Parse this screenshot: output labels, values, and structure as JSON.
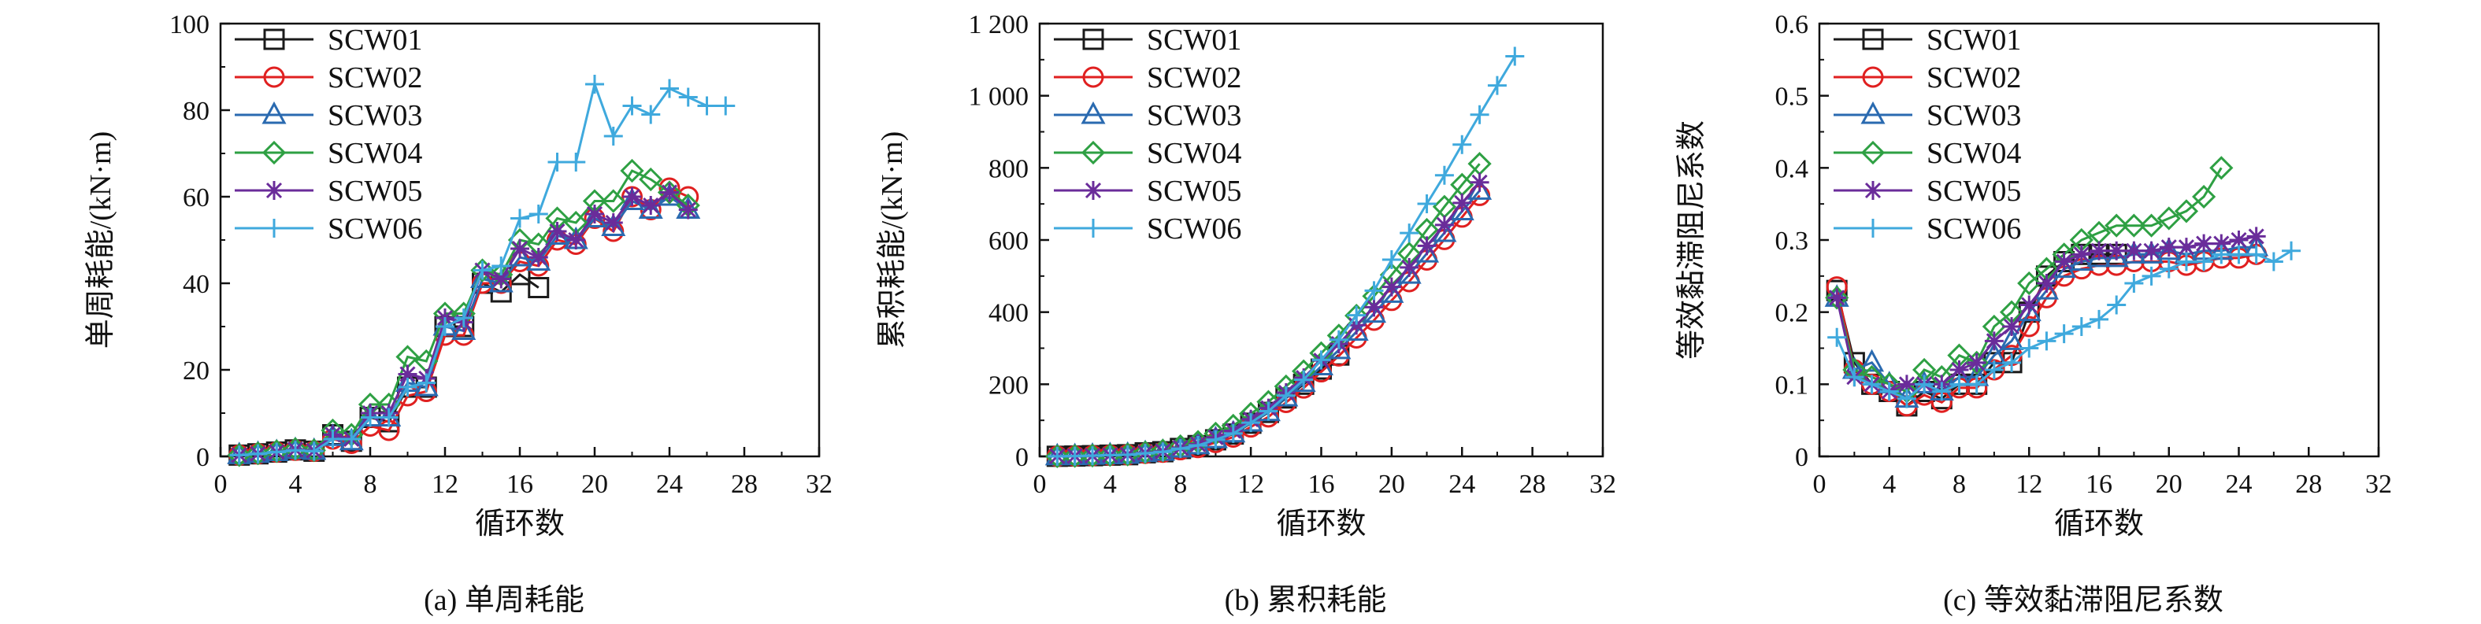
{
  "chart_data": [
    {
      "type": "line",
      "caption": "(a) 单周耗能",
      "xlabel": "循环数",
      "ylabel": "单周耗能/(kN·m)",
      "xlim": [
        0,
        32
      ],
      "ylim": [
        0,
        100
      ],
      "xticks": [
        "0",
        "4",
        "8",
        "12",
        "16",
        "20",
        "24",
        "28",
        "32"
      ],
      "yticks": [
        "0",
        "20",
        "40",
        "60",
        "80",
        "100"
      ],
      "legend": "top-left",
      "series": [
        {
          "name": "SCW01",
          "color": "#1a1a1a",
          "marker": "square",
          "x": [
            1,
            2,
            3,
            4,
            5,
            6,
            7,
            8,
            9,
            10,
            11,
            12,
            13,
            14,
            15,
            16,
            17
          ],
          "y": [
            0.3,
            0.6,
            1,
            1.5,
            1.2,
            5,
            3.5,
            9,
            8,
            16,
            16,
            30,
            30,
            40,
            38,
            42,
            39
          ]
        },
        {
          "name": "SCW02",
          "color": "#e02020",
          "marker": "circle",
          "x": [
            1,
            2,
            3,
            4,
            5,
            6,
            7,
            8,
            9,
            10,
            11,
            12,
            13,
            14,
            15,
            16,
            17,
            18,
            19,
            20,
            21,
            22,
            23,
            24,
            25
          ],
          "y": [
            0.3,
            0.6,
            1,
            1.4,
            1.2,
            4,
            3,
            7,
            6,
            14,
            15,
            28,
            28,
            40,
            40,
            45,
            44,
            50,
            49,
            55,
            52,
            60,
            57,
            62,
            60
          ]
        },
        {
          "name": "SCW03",
          "color": "#2a6ab0",
          "marker": "triangle",
          "x": [
            1,
            2,
            3,
            4,
            5,
            6,
            7,
            8,
            9,
            10,
            11,
            12,
            13,
            14,
            15,
            16,
            17,
            18,
            19,
            20,
            21,
            22,
            23,
            24,
            25
          ],
          "y": [
            0.3,
            0.6,
            1,
            1.5,
            1.3,
            4.5,
            3.5,
            9,
            9,
            17,
            16,
            30,
            29,
            41,
            40,
            46,
            45,
            51,
            50,
            55,
            53,
            59,
            57,
            60,
            57
          ]
        },
        {
          "name": "SCW04",
          "color": "#2ea043",
          "marker": "diamond",
          "x": [
            1,
            2,
            3,
            4,
            5,
            6,
            7,
            8,
            9,
            10,
            11,
            12,
            13,
            14,
            15,
            16,
            17,
            18,
            19,
            20,
            21,
            22,
            23,
            24,
            25
          ],
          "y": [
            0.3,
            0.7,
            1.2,
            1.7,
            1.4,
            6,
            5,
            12,
            12,
            23,
            22,
            33,
            33,
            43,
            42,
            50,
            49,
            55,
            54,
            59,
            59,
            66,
            64,
            61,
            58
          ]
        },
        {
          "name": "SCW05",
          "color": "#6a2c9a",
          "marker": "asterisk",
          "x": [
            1,
            2,
            3,
            4,
            5,
            6,
            7,
            8,
            9,
            10,
            11,
            12,
            13,
            14,
            15,
            16,
            17,
            18,
            19,
            20,
            21,
            22,
            23,
            24,
            25
          ],
          "y": [
            0.3,
            0.6,
            1,
            1.6,
            1.3,
            5,
            4,
            10,
            10,
            19,
            18,
            32,
            31,
            43,
            41,
            48,
            46,
            52,
            50,
            56,
            54,
            60,
            58,
            61,
            57
          ]
        },
        {
          "name": "SCW06",
          "color": "#3fa9dd",
          "marker": "plus",
          "x": [
            1,
            2,
            3,
            4,
            5,
            6,
            7,
            8,
            9,
            10,
            11,
            12,
            13,
            14,
            15,
            16,
            17,
            18,
            19,
            20,
            21,
            22,
            23,
            24,
            25,
            26,
            27
          ],
          "y": [
            0.3,
            0.6,
            1,
            1.4,
            1.2,
            4,
            4,
            9,
            9,
            16,
            17,
            30,
            32,
            43,
            44,
            55,
            56,
            68,
            68,
            86,
            74,
            81,
            79,
            85,
            83,
            81,
            81
          ]
        }
      ]
    },
    {
      "type": "line",
      "caption": "(b) 累积耗能",
      "xlabel": "循环数",
      "ylabel": "累积耗能/(kN·m)",
      "xlim": [
        0,
        32
      ],
      "ylim": [
        0,
        1200
      ],
      "xticks": [
        "0",
        "4",
        "8",
        "12",
        "16",
        "20",
        "24",
        "28",
        "32"
      ],
      "yticks": [
        "0",
        "200",
        "400",
        "600",
        "800",
        "1 000",
        "1 200"
      ],
      "legend": "top-left",
      "series": [
        {
          "name": "SCW01",
          "color": "#1a1a1a",
          "marker": "square",
          "x": [
            1,
            2,
            3,
            4,
            5,
            6,
            7,
            8,
            9,
            10,
            11,
            12,
            13,
            14,
            15,
            16,
            17
          ],
          "y": [
            0.3,
            1,
            2,
            3.5,
            4.7,
            10,
            13,
            22,
            30,
            46,
            62,
            92,
            122,
            162,
            200,
            242,
            281
          ]
        },
        {
          "name": "SCW02",
          "color": "#e02020",
          "marker": "circle",
          "x": [
            1,
            2,
            3,
            4,
            5,
            6,
            7,
            8,
            9,
            10,
            11,
            12,
            13,
            14,
            15,
            16,
            17,
            18,
            19,
            20,
            21,
            22,
            23,
            24,
            25
          ],
          "y": [
            0.3,
            0.9,
            1.9,
            3.3,
            4.5,
            8.5,
            11.5,
            18.5,
            24.5,
            38.5,
            53.5,
            81.5,
            109.5,
            149.5,
            189.5,
            234.5,
            278.5,
            328.5,
            377.5,
            432.5,
            484.5,
            544.5,
            601.5,
            663.5,
            723.5
          ]
        },
        {
          "name": "SCW03",
          "color": "#2a6ab0",
          "marker": "triangle",
          "x": [
            1,
            2,
            3,
            4,
            5,
            6,
            7,
            8,
            9,
            10,
            11,
            12,
            13,
            14,
            15,
            16,
            17,
            18,
            19,
            20,
            21,
            22,
            23,
            24,
            25
          ],
          "y": [
            0.3,
            0.9,
            1.9,
            3.4,
            4.7,
            9.2,
            12.7,
            21.7,
            30.7,
            47.7,
            63.7,
            93.7,
            122.7,
            163.7,
            203.7,
            249.7,
            294.7,
            345.7,
            395.7,
            450.7,
            503.7,
            562.7,
            619.7,
            679.7,
            736.7
          ]
        },
        {
          "name": "SCW04",
          "color": "#2ea043",
          "marker": "diamond",
          "x": [
            1,
            2,
            3,
            4,
            5,
            6,
            7,
            8,
            9,
            10,
            11,
            12,
            13,
            14,
            15,
            16,
            17,
            18,
            19,
            20,
            21,
            22,
            23,
            24,
            25
          ],
          "y": [
            0.3,
            1,
            2.2,
            3.9,
            5.3,
            11.3,
            16.3,
            28.3,
            40.3,
            63.3,
            85.3,
            118.3,
            151.3,
            194.3,
            236.3,
            286.3,
            335.3,
            390.3,
            444.3,
            503.3,
            562.3,
            628.3,
            692.3,
            753.3,
            811.3
          ]
        },
        {
          "name": "SCW05",
          "color": "#6a2c9a",
          "marker": "asterisk",
          "x": [
            1,
            2,
            3,
            4,
            5,
            6,
            7,
            8,
            9,
            10,
            11,
            12,
            13,
            14,
            15,
            16,
            17,
            18,
            19,
            20,
            21,
            22,
            23,
            24,
            25
          ],
          "y": [
            0.3,
            0.9,
            1.9,
            3.5,
            4.8,
            9.8,
            13.8,
            23.8,
            33.8,
            52.8,
            70.8,
            102.8,
            133.8,
            176.8,
            217.8,
            265.8,
            311.8,
            363.8,
            413.8,
            469.8,
            523.8,
            583.8,
            641.8,
            702.8,
            759.8
          ]
        },
        {
          "name": "SCW06",
          "color": "#3fa9dd",
          "marker": "plus",
          "x": [
            1,
            2,
            3,
            4,
            5,
            6,
            7,
            8,
            9,
            10,
            11,
            12,
            13,
            14,
            15,
            16,
            17,
            18,
            19,
            20,
            21,
            22,
            23,
            24,
            25,
            26,
            27
          ],
          "y": [
            0.3,
            0.9,
            1.9,
            3.3,
            4.5,
            8.5,
            12.5,
            21.5,
            30.5,
            46.5,
            63.5,
            93.5,
            125.5,
            168.5,
            212.5,
            267.5,
            323.5,
            391.5,
            459.5,
            545.5,
            619.5,
            700.5,
            779.5,
            864.5,
            947.5,
            1028.5,
            1109.5
          ]
        }
      ]
    },
    {
      "type": "line",
      "caption": "(c) 等效黏滞阻尼系数",
      "xlabel": "循环数",
      "ylabel": "等效黏滞阻尼系数",
      "xlim": [
        0,
        32
      ],
      "ylim": [
        0,
        0.6
      ],
      "xticks": [
        "0",
        "4",
        "8",
        "12",
        "16",
        "20",
        "24",
        "28",
        "32"
      ],
      "yticks": [
        "0",
        "0.1",
        "0.2",
        "0.3",
        "0.4",
        "0.5",
        "0.6"
      ],
      "legend": "top-left",
      "series": [
        {
          "name": "SCW01",
          "color": "#1a1a1a",
          "marker": "square",
          "x": [
            1,
            2,
            3,
            4,
            5,
            6,
            7,
            8,
            9,
            10,
            11,
            12,
            13,
            14,
            15,
            16,
            17
          ],
          "y": [
            0.23,
            0.13,
            0.1,
            0.09,
            0.07,
            0.09,
            0.08,
            0.1,
            0.1,
            0.13,
            0.13,
            0.2,
            0.25,
            0.27,
            0.28,
            0.28,
            0.28
          ]
        },
        {
          "name": "SCW02",
          "color": "#e02020",
          "marker": "circle",
          "x": [
            1,
            2,
            3,
            4,
            5,
            6,
            7,
            8,
            9,
            10,
            11,
            12,
            13,
            14,
            15,
            16,
            17,
            18,
            19,
            20,
            21,
            22,
            23,
            24,
            25
          ],
          "y": [
            0.235,
            0.12,
            0.1,
            0.09,
            0.07,
            0.085,
            0.075,
            0.095,
            0.095,
            0.12,
            0.14,
            0.18,
            0.22,
            0.25,
            0.26,
            0.265,
            0.265,
            0.27,
            0.27,
            0.27,
            0.265,
            0.27,
            0.275,
            0.275,
            0.28
          ]
        },
        {
          "name": "SCW03",
          "color": "#2a6ab0",
          "marker": "triangle",
          "x": [
            1,
            2,
            3,
            4,
            5,
            6,
            7,
            8,
            9,
            10,
            11,
            12,
            13,
            14,
            15,
            16,
            17,
            18,
            19,
            20,
            21,
            22,
            23,
            24,
            25
          ],
          "y": [
            0.22,
            0.12,
            0.13,
            0.1,
            0.08,
            0.1,
            0.09,
            0.11,
            0.11,
            0.14,
            0.16,
            0.2,
            0.23,
            0.26,
            0.27,
            0.275,
            0.275,
            0.28,
            0.28,
            0.285,
            0.28,
            0.285,
            0.285,
            0.29,
            0.29
          ]
        },
        {
          "name": "SCW04",
          "color": "#2ea043",
          "marker": "diamond",
          "x": [
            1,
            2,
            3,
            4,
            5,
            6,
            7,
            8,
            9,
            10,
            11,
            12,
            13,
            14,
            15,
            16,
            17,
            18,
            19,
            20,
            21,
            22,
            23
          ],
          "y": [
            0.22,
            0.12,
            0.11,
            0.1,
            0.09,
            0.12,
            0.11,
            0.14,
            0.13,
            0.18,
            0.2,
            0.24,
            0.26,
            0.28,
            0.3,
            0.31,
            0.32,
            0.32,
            0.32,
            0.33,
            0.34,
            0.36,
            0.4
          ]
        },
        {
          "name": "SCW05",
          "color": "#6a2c9a",
          "marker": "asterisk",
          "x": [
            1,
            2,
            3,
            4,
            5,
            6,
            7,
            8,
            9,
            10,
            11,
            12,
            13,
            14,
            15,
            16,
            17,
            18,
            19,
            20,
            21,
            22,
            23,
            24,
            25
          ],
          "y": [
            0.22,
            0.11,
            0.1,
            0.09,
            0.1,
            0.1,
            0.1,
            0.12,
            0.13,
            0.16,
            0.18,
            0.21,
            0.24,
            0.27,
            0.28,
            0.285,
            0.285,
            0.285,
            0.285,
            0.29,
            0.29,
            0.295,
            0.295,
            0.3,
            0.305
          ]
        },
        {
          "name": "SCW06",
          "color": "#3fa9dd",
          "marker": "plus",
          "x": [
            1,
            2,
            3,
            4,
            5,
            6,
            7,
            8,
            9,
            10,
            11,
            12,
            13,
            14,
            15,
            16,
            17,
            18,
            19,
            20,
            21,
            22,
            23,
            24,
            25,
            26,
            27
          ],
          "y": [
            0.165,
            0.11,
            0.1,
            0.09,
            0.08,
            0.1,
            0.09,
            0.1,
            0.1,
            0.12,
            0.13,
            0.15,
            0.16,
            0.17,
            0.18,
            0.19,
            0.21,
            0.24,
            0.25,
            0.26,
            0.27,
            0.27,
            0.28,
            0.28,
            0.28,
            0.27,
            0.285
          ]
        }
      ]
    }
  ]
}
